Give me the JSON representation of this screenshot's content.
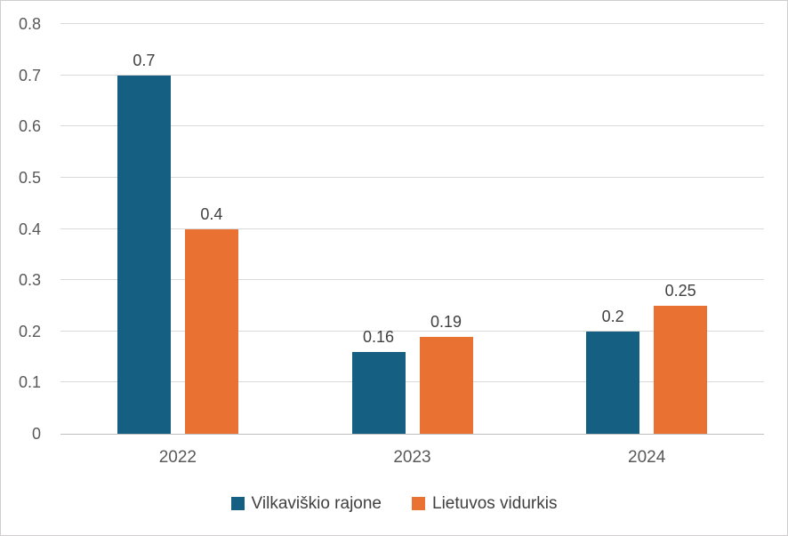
{
  "chart_data": {
    "type": "bar",
    "title": "",
    "xlabel": "",
    "ylabel": "",
    "categories": [
      "2022",
      "2023",
      "2024"
    ],
    "series": [
      {
        "name": "Vilkaviškio rajone",
        "color": "#156082",
        "values": [
          0.7,
          0.16,
          0.2
        ],
        "value_labels": [
          "0.7",
          "0.16",
          "0.2"
        ]
      },
      {
        "name": "Lietuvos vidurkis",
        "color": "#E97132",
        "values": [
          0.4,
          0.19,
          0.25
        ],
        "value_labels": [
          "0.4",
          "0.19",
          "0.25"
        ]
      }
    ],
    "ylim": [
      0,
      0.8
    ],
    "yticks": [
      0,
      0.1,
      0.2,
      0.3,
      0.4,
      0.5,
      0.6,
      0.7,
      0.8
    ],
    "ytick_labels": [
      "0",
      "0.1",
      "0.2",
      "0.3",
      "0.4",
      "0.5",
      "0.6",
      "0.7",
      "0.8"
    ],
    "grid": true,
    "data_labels": true,
    "legend_position": "bottom"
  },
  "style": {
    "gridline_color": "#d9d9d9",
    "axis_line_color": "#bfbfbf",
    "tick_label_color": "#595959",
    "data_label_color": "#404040",
    "frame_border_color": "#d0cece",
    "background": "#ffffff"
  }
}
